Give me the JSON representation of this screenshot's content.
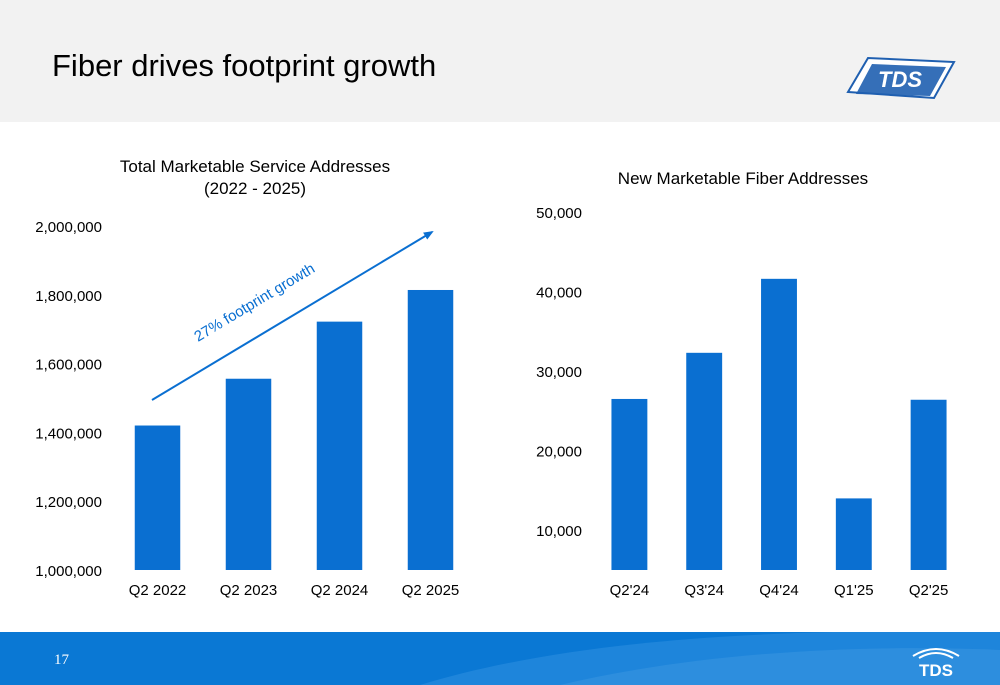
{
  "slide": {
    "title": "Fiber drives footprint growth",
    "page_number": "17"
  },
  "brand": {
    "logo_text": "TDS",
    "accent_color": "#0a6fd1",
    "footer_color": "#0a78d4"
  },
  "chart_data": [
    {
      "type": "bar",
      "title": "Total Marketable Service Addresses",
      "subtitle": "(2022 - 2025)",
      "categories": [
        "Q2 2022",
        "Q2 2023",
        "Q2 2024",
        "Q2 2025"
      ],
      "values": [
        1420000,
        1556000,
        1722000,
        1814000
      ],
      "ylim": [
        1000000,
        2000000
      ],
      "yticks": [
        "1,000,000",
        "1,200,000",
        "1,400,000",
        "1,600,000",
        "1,800,000",
        "2,000,000"
      ],
      "annotation": "27% footprint growth",
      "color": "#0a6fd1",
      "grid": false
    },
    {
      "type": "bar",
      "title": "New Marketable Fiber Addresses",
      "categories": [
        "Q2'24",
        "Q3'24",
        "Q4'24",
        "Q1'25",
        "Q2'25"
      ],
      "values": [
        26500,
        32300,
        41600,
        14000,
        26400
      ],
      "ylim": [
        5000,
        50000
      ],
      "yticks": [
        "10,000",
        "20,000",
        "30,000",
        "40,000",
        "50,000"
      ],
      "color": "#0a6fd1",
      "grid": false
    }
  ]
}
